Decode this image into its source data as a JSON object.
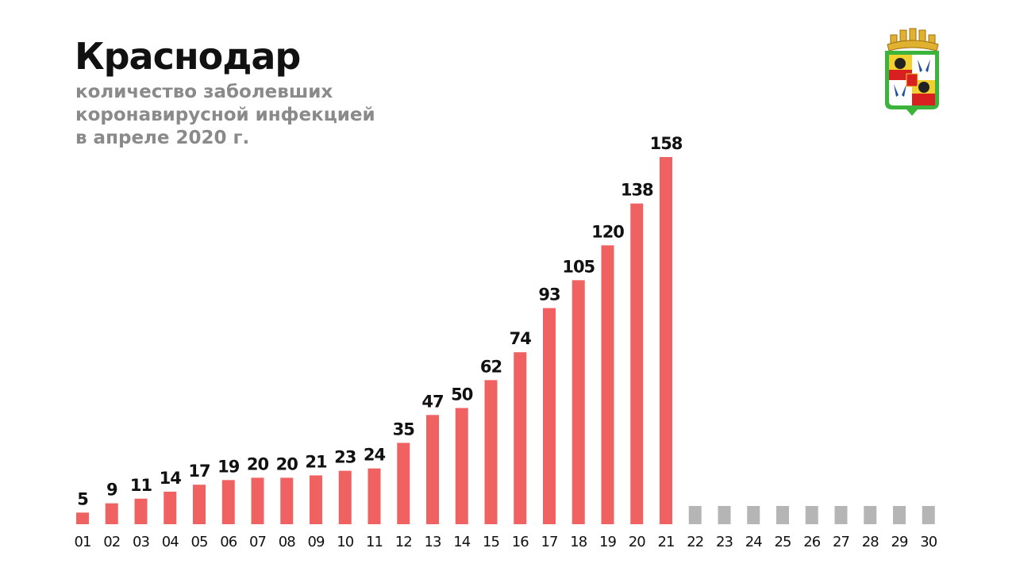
{
  "header": {
    "title": "Краснодар",
    "subtitle_lines": [
      "количество заболевших",
      "коронавирусной инфекцией",
      "в апреле 2020 г."
    ]
  },
  "colors": {
    "bar": "#f06262",
    "placeholder": "#b5b5b5",
    "label": "#111111"
  },
  "chart_data": {
    "type": "bar",
    "title": "Краснодар",
    "subtitle": "количество заболевших коронавирусной инфекцией в апреле 2020 г.",
    "xlabel": "",
    "ylabel": "",
    "categories": [
      "01",
      "02",
      "03",
      "04",
      "05",
      "06",
      "07",
      "08",
      "09",
      "10",
      "11",
      "12",
      "13",
      "14",
      "15",
      "16",
      "17",
      "18",
      "19",
      "20",
      "21",
      "22",
      "23",
      "24",
      "25",
      "26",
      "27",
      "28",
      "29",
      "30"
    ],
    "values": [
      5,
      9,
      11,
      14,
      17,
      19,
      20,
      20,
      21,
      23,
      24,
      35,
      47,
      50,
      62,
      74,
      93,
      105,
      120,
      138,
      158,
      null,
      null,
      null,
      null,
      null,
      null,
      null,
      null,
      null
    ],
    "ylim": [
      0,
      158
    ],
    "grid": false,
    "legend": "none"
  }
}
